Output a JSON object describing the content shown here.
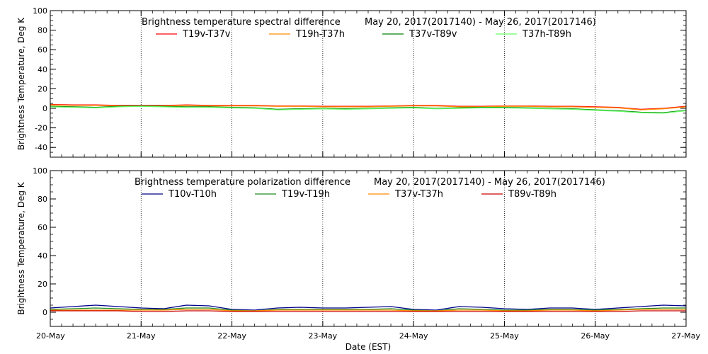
{
  "chart_data": [
    {
      "type": "line",
      "title": "Brightness temperature spectral difference",
      "date_range": "May 20, 2017(2017140) - May 26, 2017(2017146)",
      "ylabel": "Brightness Temperature, Deg K",
      "xlabel": "",
      "xlim": [
        0,
        7
      ],
      "ylim": [
        -50,
        100
      ],
      "yticks": [
        -40,
        -20,
        0,
        20,
        40,
        60,
        80,
        100
      ],
      "x_tick_labels": [
        "20-May",
        "21-May",
        "22-May",
        "23-May",
        "24-May",
        "25-May",
        "26-May",
        "27-May"
      ],
      "show_x_tick_labels": false,
      "grid": "vertical dotted at day boundaries",
      "legend": "top",
      "x": [
        0,
        0.25,
        0.5,
        0.75,
        1,
        1.25,
        1.5,
        1.75,
        2,
        2.25,
        2.5,
        2.75,
        3,
        3.25,
        3.5,
        3.75,
        4,
        4.25,
        4.5,
        4.75,
        5,
        5.25,
        5.5,
        5.75,
        6,
        6.25,
        6.5,
        6.75,
        7
      ],
      "series": [
        {
          "name": "T19v-T37v",
          "color": "#ff0000",
          "values": [
            4,
            3.5,
            3.5,
            3,
            3,
            3,
            3.5,
            3,
            3,
            3,
            2.5,
            2.5,
            2,
            2,
            2,
            2.5,
            3,
            3,
            2,
            2,
            2.5,
            2.5,
            2,
            2,
            1.5,
            1,
            -1,
            0,
            2
          ]
        },
        {
          "name": "T19h-T37h",
          "color": "#ff8c00",
          "values": [
            3.5,
            3,
            3,
            2.5,
            2.5,
            2.5,
            3,
            2.5,
            2.5,
            2.5,
            2,
            2,
            1.5,
            1.5,
            1.5,
            2,
            2.5,
            2.5,
            1.5,
            1.5,
            2,
            2,
            1.5,
            1.5,
            1,
            0.5,
            -1.5,
            -0.5,
            1.5
          ]
        },
        {
          "name": "T37v-T89v",
          "color": "#008000",
          "values": [
            2,
            1.5,
            1,
            2,
            2.5,
            2,
            1.5,
            1.5,
            1,
            0.5,
            -1,
            -0.5,
            0,
            -0.5,
            0,
            0.5,
            1,
            0,
            0.5,
            1,
            1,
            0.5,
            0,
            -0.5,
            -1.5,
            -2.5,
            -4,
            -4.5,
            -2
          ]
        },
        {
          "name": "T37h-T89h",
          "color": "#66ff66",
          "values": [
            1.5,
            1,
            0.5,
            1.5,
            2,
            1.5,
            1,
            1,
            0.5,
            0,
            -1.5,
            -1,
            -0.5,
            -1,
            -0.5,
            0,
            0.5,
            -0.5,
            0,
            0.5,
            0.5,
            0,
            -0.5,
            -1,
            -2,
            -3,
            -4.5,
            -5,
            -2.5
          ]
        }
      ]
    },
    {
      "type": "line",
      "title": "Brightness temperature polarization difference",
      "date_range": "May 20, 2017(2017140) - May 26, 2017(2017146)",
      "ylabel": "Brightness Temperature, Deg K",
      "xlabel": "Date (EST)",
      "xlim": [
        0,
        7
      ],
      "ylim": [
        -10,
        100
      ],
      "yticks": [
        0,
        20,
        40,
        60,
        80,
        100
      ],
      "x_tick_labels": [
        "20-May",
        "21-May",
        "22-May",
        "23-May",
        "24-May",
        "25-May",
        "26-May",
        "27-May"
      ],
      "show_x_tick_labels": true,
      "grid": "vertical dotted at day boundaries",
      "legend": "top",
      "x": [
        0,
        0.25,
        0.5,
        0.75,
        1,
        1.25,
        1.5,
        1.75,
        2,
        2.25,
        2.5,
        2.75,
        3,
        3.25,
        3.5,
        3.75,
        4,
        4.25,
        4.5,
        4.75,
        5,
        5.25,
        5.5,
        5.75,
        6,
        6.25,
        6.5,
        6.75,
        7
      ],
      "series": [
        {
          "name": "T10v-T10h",
          "color": "#00008b",
          "values": [
            3,
            4,
            5,
            4,
            3,
            2.5,
            5,
            4.5,
            2,
            1.5,
            3,
            3.5,
            3,
            3,
            3.5,
            4,
            2,
            1.5,
            4,
            3.5,
            2.5,
            2,
            3,
            3,
            2,
            3,
            4,
            5,
            4.5
          ]
        },
        {
          "name": "T19v-T19h",
          "color": "#228b22",
          "values": [
            2,
            2.5,
            3,
            2.5,
            2,
            2,
            3,
            3,
            1.5,
            1,
            2,
            2,
            2,
            2,
            2,
            2.5,
            1.5,
            1,
            2.5,
            2,
            1.5,
            1.5,
            2,
            2,
            1.5,
            2,
            2.5,
            3,
            3
          ]
        },
        {
          "name": "T37v-T37h",
          "color": "#ff8c00",
          "values": [
            1.5,
            1.5,
            1.5,
            1.5,
            1.5,
            1.5,
            2,
            2,
            1,
            1,
            1.5,
            1.5,
            1.5,
            1.5,
            1.5,
            1.5,
            1,
            1,
            1.5,
            1.5,
            1,
            1,
            1.5,
            1.5,
            1,
            1.5,
            2,
            2,
            2
          ]
        },
        {
          "name": "T89v-T89h",
          "color": "#cc0000",
          "values": [
            1,
            1,
            1,
            1,
            0.5,
            0.5,
            1,
            1,
            0.5,
            0.5,
            0.5,
            0.5,
            0.5,
            0.5,
            0.5,
            0.5,
            0.5,
            0.5,
            0.5,
            0.5,
            0.5,
            0.5,
            0.5,
            0.5,
            0.5,
            0.5,
            1,
            1,
            1
          ]
        }
      ]
    }
  ]
}
